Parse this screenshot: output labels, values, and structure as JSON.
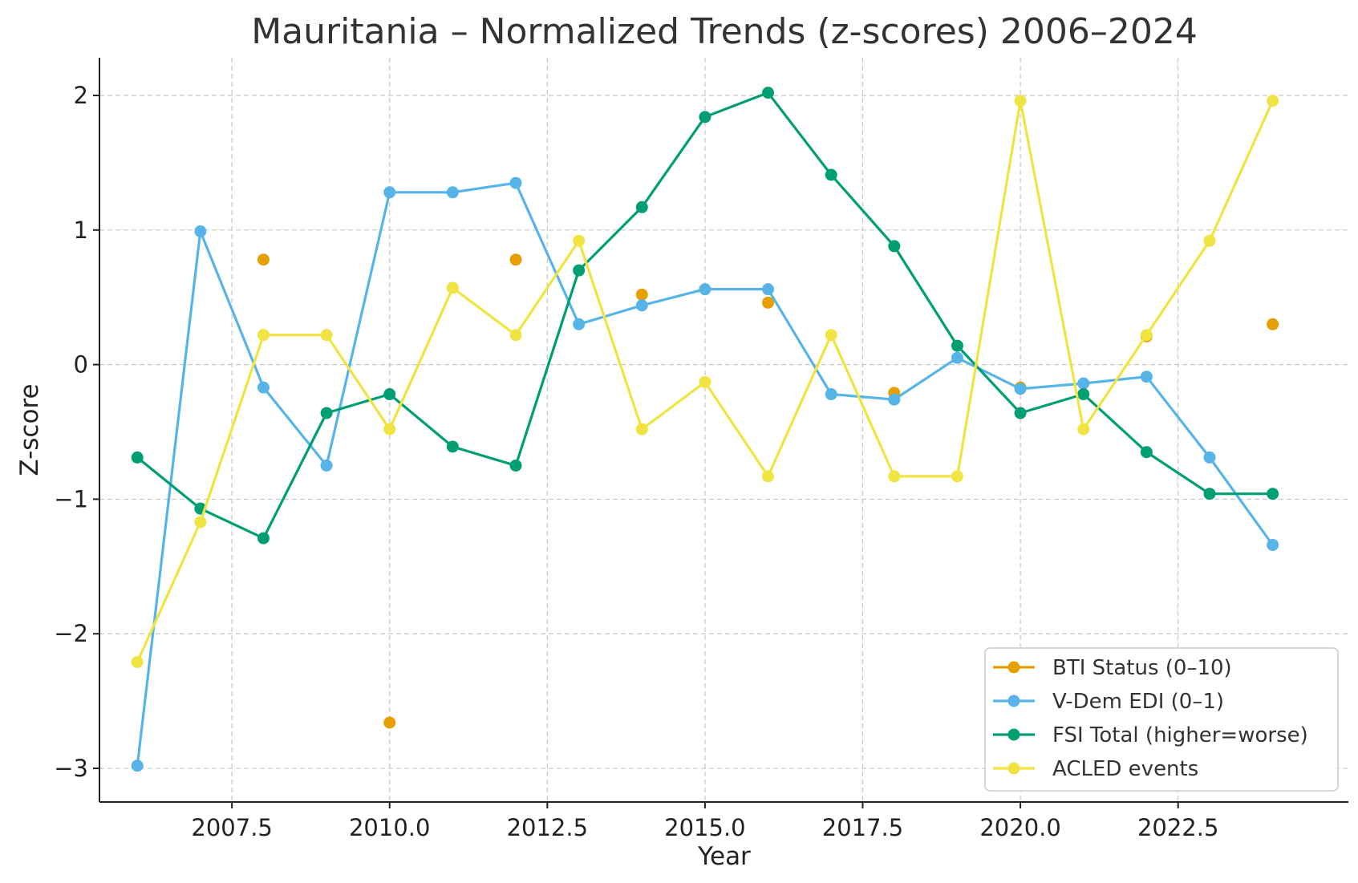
{
  "chart_data": {
    "type": "line",
    "title": "Mauritania – Normalized Trends (z-scores) 2006–2024",
    "xlabel": "Year",
    "ylabel": "Z-score",
    "xlim": [
      2005.4,
      2025.2
    ],
    "ylim": [
      -3.25,
      2.28
    ],
    "x_ticks": [
      2007.5,
      2010.0,
      2012.5,
      2015.0,
      2017.5,
      2020.0,
      2022.5
    ],
    "x_tick_labels": [
      "2007.5",
      "2010.0",
      "2012.5",
      "2015.0",
      "2017.5",
      "2020.0",
      "2022.5"
    ],
    "y_ticks": [
      2,
      1,
      0,
      -1,
      -2,
      -3
    ],
    "y_tick_labels": [
      "2",
      "1",
      "0",
      "−1",
      "−2",
      "−3"
    ],
    "grid": true,
    "legend_position": "bottom-right",
    "series": [
      {
        "name": "BTI Status (0–10)",
        "color": "#E69F00",
        "x": [
          2008,
          2010,
          2012,
          2014,
          2016,
          2018,
          2020,
          2022,
          2024
        ],
        "y": [
          0.78,
          -2.66,
          0.78,
          0.52,
          0.46,
          -0.21,
          -0.17,
          0.21,
          0.3
        ],
        "markers_only": true
      },
      {
        "name": "V-Dem EDI (0–1)",
        "color": "#56B4E9",
        "x": [
          2006,
          2007,
          2008,
          2009,
          2010,
          2011,
          2012,
          2013,
          2014,
          2015,
          2016,
          2017,
          2018,
          2019,
          2020,
          2021,
          2022,
          2023,
          2024
        ],
        "y": [
          -2.98,
          0.99,
          -0.17,
          -0.75,
          1.28,
          1.28,
          1.35,
          0.3,
          0.44,
          0.56,
          0.56,
          -0.22,
          -0.26,
          0.05,
          -0.18,
          -0.14,
          -0.09,
          -0.69,
          -1.34
        ]
      },
      {
        "name": "FSI Total (higher=worse)",
        "color": "#009E73",
        "x": [
          2006,
          2007,
          2008,
          2009,
          2010,
          2011,
          2012,
          2013,
          2014,
          2015,
          2016,
          2017,
          2018,
          2019,
          2020,
          2021,
          2022,
          2023,
          2024
        ],
        "y": [
          -0.69,
          -1.07,
          -1.29,
          -0.36,
          -0.22,
          -0.61,
          -0.75,
          0.7,
          1.17,
          1.84,
          2.02,
          1.41,
          0.88,
          0.14,
          -0.36,
          -0.22,
          -0.65,
          -0.96,
          -0.96
        ]
      },
      {
        "name": "ACLED events",
        "color": "#F0E442",
        "x": [
          2006,
          2007,
          2008,
          2009,
          2010,
          2011,
          2012,
          2013,
          2014,
          2015,
          2016,
          2017,
          2018,
          2019,
          2020,
          2021,
          2022,
          2023,
          2024
        ],
        "y": [
          -2.21,
          -1.17,
          0.22,
          0.22,
          -0.48,
          0.57,
          0.22,
          0.92,
          -0.48,
          -0.13,
          -0.83,
          0.22,
          -0.83,
          -0.83,
          1.96,
          -0.48,
          0.22,
          0.92,
          1.96
        ]
      }
    ]
  }
}
